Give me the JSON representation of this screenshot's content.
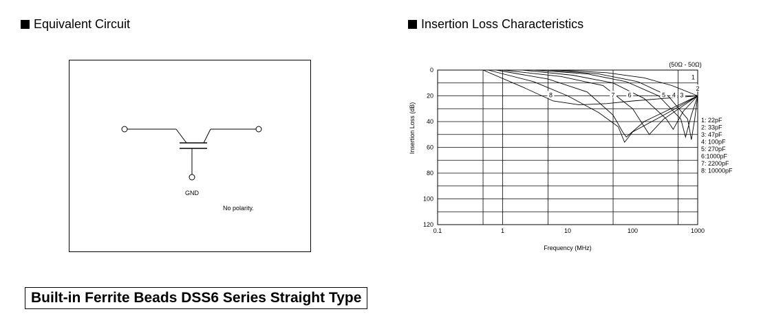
{
  "left_section": {
    "heading": "Equivalent Circuit",
    "gnd_label": "GND",
    "polarity_note": "No polarity."
  },
  "right_section": {
    "heading": "Insertion Loss Characteristics"
  },
  "footer": {
    "title": "Built-in Ferrite Beads DSS6 Series Straight Type"
  },
  "chart_data": {
    "type": "line",
    "title": "",
    "xlabel": "Frequency (MHz)",
    "ylabel": "Insertion Loss (dB)",
    "x_scale": "log",
    "xlim": [
      0.1,
      1000
    ],
    "ylim": [
      0,
      120
    ],
    "y_inverted": true,
    "grid": true,
    "x_ticks": [
      "0.1",
      "1",
      "10",
      "100",
      "1000"
    ],
    "y_ticks": [
      "0",
      "20",
      "40",
      "60",
      "80",
      "100",
      "120"
    ],
    "condition_label": "(50Ω - 50Ω)",
    "legend_position": "right",
    "legend": [
      "1: 22pF",
      "2: 33pF",
      "3: 47pF",
      "4: 100pF",
      "5: 270pF",
      "6:1000pF",
      "7: 2200pF",
      "8: 10000pF"
    ],
    "series": [
      {
        "name": "1",
        "x": [
          7,
          40,
          150,
          400,
          1000
        ],
        "y": [
          0,
          2,
          6,
          12,
          20
        ]
      },
      {
        "name": "2",
        "x": [
          5,
          30,
          120,
          350,
          700,
          800,
          900,
          1000
        ],
        "y": [
          0,
          3,
          9,
          20,
          38,
          54,
          38,
          20
        ]
      },
      {
        "name": "3",
        "x": [
          3,
          20,
          80,
          250,
          550,
          650,
          800,
          1000
        ],
        "y": [
          0,
          3,
          9,
          20,
          38,
          52,
          35,
          20
        ]
      },
      {
        "name": "4",
        "x": [
          2,
          12,
          50,
          150,
          330,
          420,
          600,
          1000
        ],
        "y": [
          0,
          4,
          10,
          22,
          38,
          46,
          32,
          20
        ]
      },
      {
        "name": "5",
        "x": [
          1,
          8,
          35,
          100,
          160,
          180,
          300,
          1000
        ],
        "y": [
          0,
          5,
          12,
          30,
          46,
          50,
          38,
          20
        ]
      },
      {
        "name": "6",
        "x": [
          0.8,
          5,
          20,
          50,
          70,
          80,
          150,
          1000
        ],
        "y": [
          0,
          7,
          17,
          35,
          48,
          52,
          40,
          20
        ]
      },
      {
        "name": "7",
        "x": [
          0.6,
          3,
          10,
          30,
          60,
          75,
          100,
          300,
          1000
        ],
        "y": [
          0,
          9,
          20,
          33,
          44,
          56,
          48,
          35,
          20
        ]
      },
      {
        "name": "8",
        "x": [
          0.5,
          2,
          6,
          15,
          40,
          100,
          300,
          1000
        ],
        "y": [
          0,
          13,
          24,
          27,
          26,
          24,
          22,
          20
        ]
      }
    ],
    "curve_labels": [
      {
        "text": "8",
        "x": 5.5,
        "y": 20
      },
      {
        "text": "7",
        "x": 50,
        "y": 20
      },
      {
        "text": "6",
        "x": 90,
        "y": 20
      },
      {
        "text": "5",
        "x": 300,
        "y": 20
      },
      {
        "text": "4",
        "x": 430,
        "y": 20
      },
      {
        "text": "3",
        "x": 570,
        "y": 20
      },
      {
        "text": "2",
        "x": 1000,
        "y": 15
      },
      {
        "text": "1",
        "x": 850,
        "y": 6
      }
    ]
  }
}
